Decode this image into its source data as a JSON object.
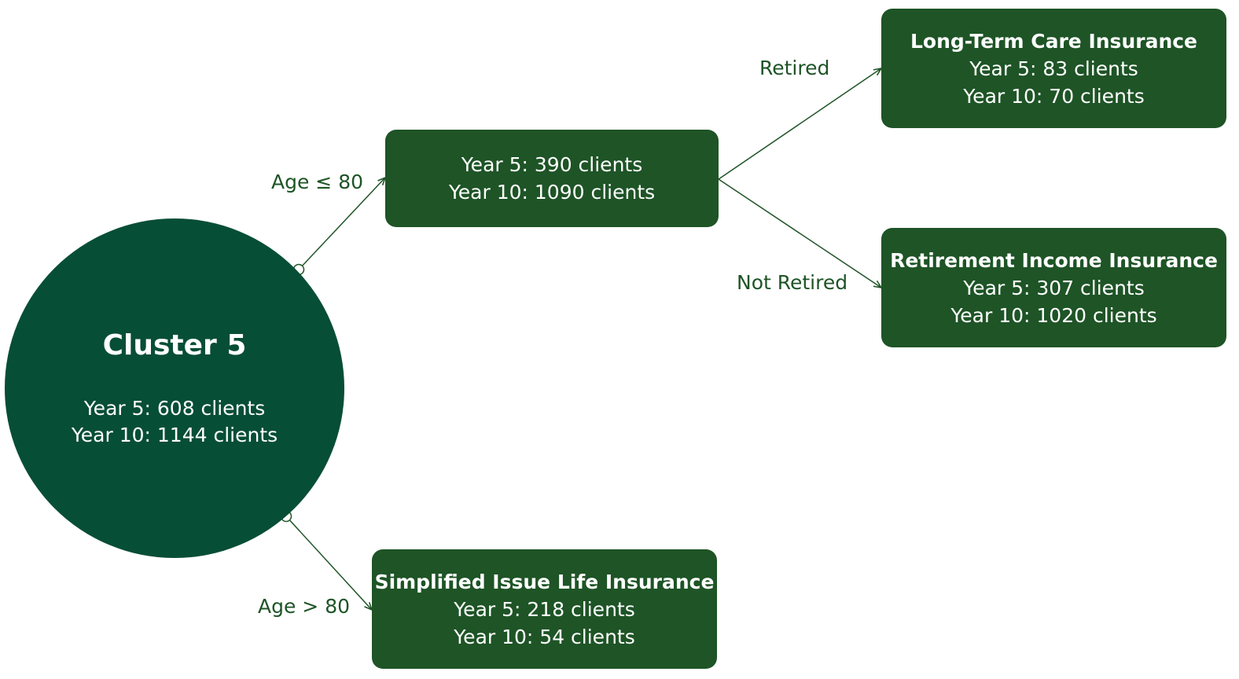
{
  "colors": {
    "root_fill": "#074e36",
    "node_fill": "#1e5426",
    "text_on_fill": "#ffffff",
    "edge_line": "#1e5426",
    "edge_label": "#1e5426"
  },
  "root": {
    "title": "Cluster 5",
    "year5": "Year 5: 608 clients",
    "year10": "Year 10: 1144 clients"
  },
  "nodes": {
    "age_le_80": {
      "year5": "Year 5: 390 clients",
      "year10": "Year 10: 1090 clients"
    },
    "long_term_care": {
      "title": "Long-Term Care Insurance",
      "year5": "Year 5: 83 clients",
      "year10": "Year 10: 70 clients"
    },
    "retirement_income": {
      "title": "Retirement Income Insurance",
      "year5": "Year 5: 307 clients",
      "year10": "Year 10: 1020 clients"
    },
    "simplified_issue": {
      "title": "Simplified Issue Life Insurance",
      "year5": "Year 5: 218 clients",
      "year10": "Year 10: 54 clients"
    }
  },
  "edges": {
    "age_le_80": "Age ≤ 80",
    "age_gt_80": "Age > 80",
    "retired": "Retired",
    "not_retired": "Not Retired"
  }
}
